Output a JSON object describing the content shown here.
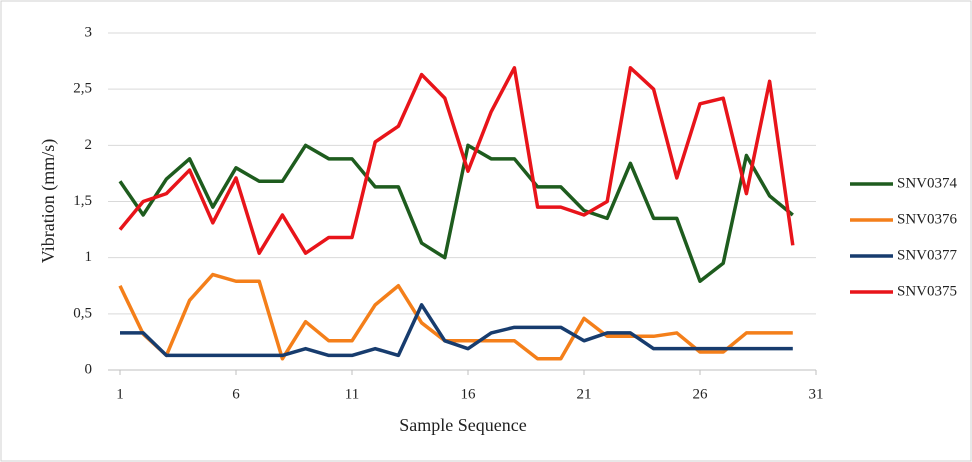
{
  "chart_data": {
    "type": "line",
    "y_label": "Vibration (mm/s)",
    "x_label": "Sample Sequence",
    "x": [
      1,
      2,
      3,
      4,
      5,
      6,
      7,
      8,
      9,
      10,
      11,
      12,
      13,
      14,
      15,
      16,
      17,
      18,
      19,
      20,
      21,
      22,
      23,
      24,
      25,
      26,
      27,
      28,
      29,
      30
    ],
    "series": [
      {
        "name": "SNV0374",
        "color": "#1e5c1e",
        "values": [
          1.68,
          1.38,
          1.7,
          1.88,
          1.45,
          1.8,
          1.68,
          1.68,
          2.0,
          1.88,
          1.88,
          1.63,
          1.63,
          1.13,
          1.0,
          2.0,
          1.88,
          1.88,
          1.63,
          1.63,
          1.42,
          1.35,
          1.84,
          1.35,
          1.35,
          0.79,
          0.95,
          1.91,
          1.55,
          1.38
        ]
      },
      {
        "name": "SNV0376",
        "color": "#f47f1a",
        "values": [
          0.75,
          0.32,
          0.13,
          0.62,
          0.85,
          0.79,
          0.79,
          0.1,
          0.43,
          0.26,
          0.26,
          0.58,
          0.75,
          0.42,
          0.26,
          0.26,
          0.26,
          0.26,
          0.1,
          0.1,
          0.46,
          0.3,
          0.3,
          0.3,
          0.33,
          0.16,
          0.16,
          0.33,
          0.33,
          0.33
        ]
      },
      {
        "name": "SNV0377",
        "color": "#173c6e",
        "values": [
          0.33,
          0.33,
          0.13,
          0.13,
          0.13,
          0.13,
          0.13,
          0.13,
          0.19,
          0.13,
          0.13,
          0.19,
          0.13,
          0.58,
          0.26,
          0.19,
          0.33,
          0.38,
          0.38,
          0.38,
          0.26,
          0.33,
          0.33,
          0.19,
          0.19,
          0.19,
          0.19,
          0.19,
          0.19,
          0.19
        ]
      },
      {
        "name": "SNV0375",
        "color": "#e8141a",
        "values": [
          1.25,
          1.5,
          1.57,
          1.78,
          1.31,
          1.71,
          1.04,
          1.38,
          1.04,
          1.18,
          1.18,
          2.03,
          2.17,
          2.63,
          2.42,
          1.77,
          2.3,
          2.69,
          1.45,
          1.45,
          1.38,
          1.5,
          2.69,
          2.5,
          1.71,
          2.37,
          2.42,
          1.57,
          2.57,
          1.11
        ]
      }
    ],
    "xlim": [
      1,
      31
    ],
    "xticks": [
      1,
      6,
      11,
      16,
      21,
      26,
      31
    ],
    "ylim": [
      0,
      3
    ],
    "yticks": [
      0,
      {
        "value": 0.5,
        "label": "0,5"
      },
      1,
      {
        "value": 1.5,
        "label": "1,5"
      },
      2,
      {
        "value": 2.5,
        "label": "2,5"
      },
      3
    ],
    "grid": true,
    "legend": "right"
  }
}
